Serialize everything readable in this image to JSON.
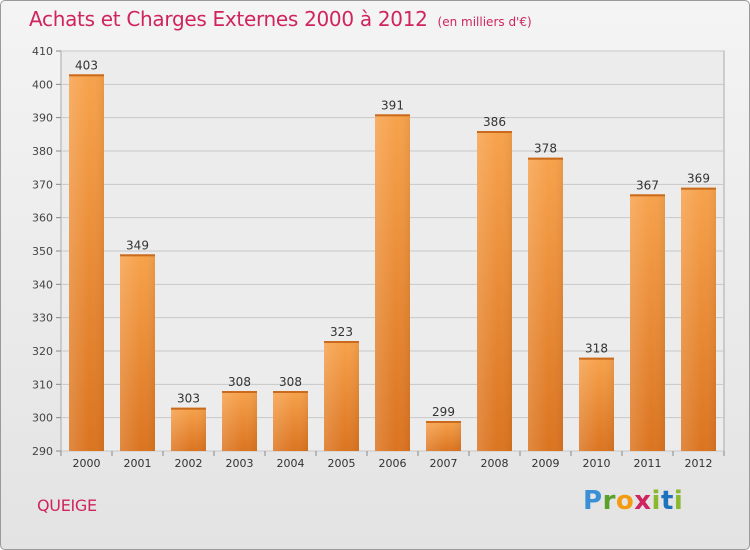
{
  "title": "Achats et Charges Externes 2000 à 2012",
  "unit_note": "(en milliers d'€)",
  "commune": "QUEIGE",
  "logo": {
    "parts": [
      "P",
      "r",
      "o",
      "x",
      "i",
      "t",
      "i"
    ]
  },
  "colors": {
    "accent": "#d0245f",
    "bar_light": "#f7a24c",
    "bar_dark": "#e07b22"
  },
  "chart_data": {
    "type": "bar",
    "title": "Achats et Charges Externes 2000 à 2012",
    "categories": [
      "2000",
      "2001",
      "2002",
      "2003",
      "2004",
      "2005",
      "2006",
      "2007",
      "2008",
      "2009",
      "2010",
      "2011",
      "2012"
    ],
    "values": [
      403,
      349,
      303,
      308,
      308,
      323,
      391,
      299,
      386,
      378,
      318,
      367,
      369
    ],
    "ylim": [
      290,
      410
    ],
    "yticks": [
      290,
      300,
      310,
      320,
      330,
      340,
      350,
      360,
      370,
      380,
      390,
      400,
      410
    ],
    "grid": true,
    "xlabel": "",
    "ylabel": ""
  }
}
